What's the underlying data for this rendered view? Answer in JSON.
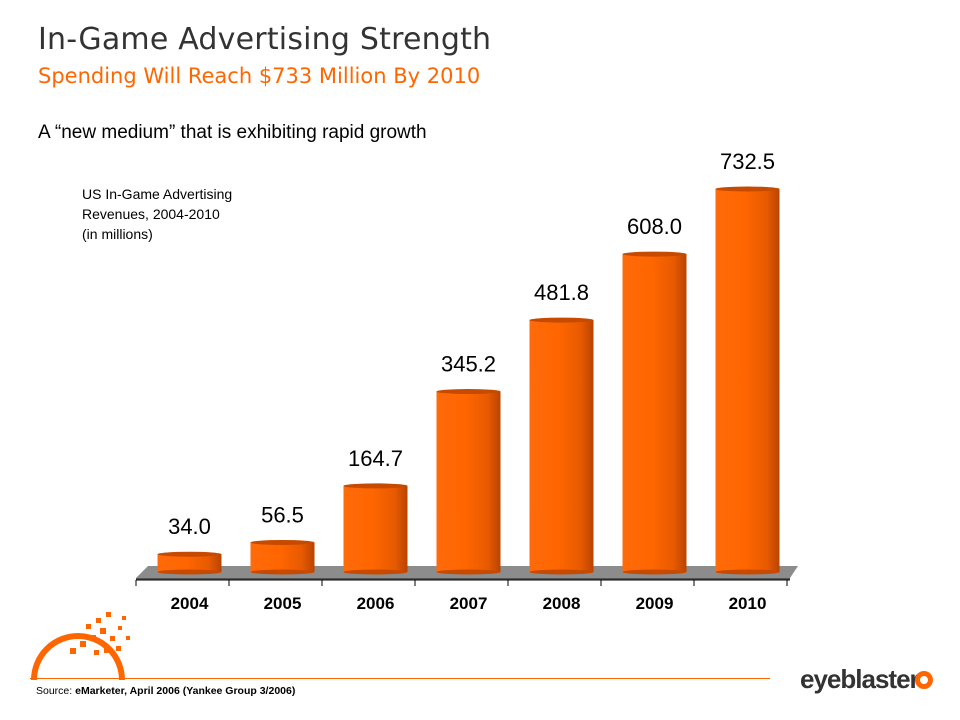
{
  "slide": {
    "title": "In-Game Advertising Strength",
    "subtitle": "Spending Will Reach $733 Million By 2010",
    "tagline": "A “new medium” that is exhibiting rapid growth",
    "source_prefix": "Source: ",
    "source_text": "eMarketer, April 2006 (Yankee Group 3/2006)",
    "logo_text": "eyeblaster",
    "colors": {
      "accent": "#ff6600",
      "bar": "#ff6600",
      "bar_dark": "#c64a00",
      "text": "#333333"
    }
  },
  "chart_data": {
    "type": "bar",
    "title_lines": [
      "US In-Game Advertising",
      "Revenues, 2004-2010",
      "(in millions)"
    ],
    "categories": [
      "2004",
      "2005",
      "2006",
      "2007",
      "2008",
      "2009",
      "2010"
    ],
    "values": [
      34.0,
      56.5,
      164.7,
      345.2,
      481.8,
      608.0,
      732.5
    ],
    "value_labels": [
      "34.0",
      "56.5",
      "164.7",
      "345.2",
      "481.8",
      "608.0",
      "732.5"
    ],
    "xlabel": "",
    "ylabel": "",
    "ylim": [
      0,
      732.5
    ],
    "grid": false,
    "legend": "none",
    "style": "3d-cylinder-bars"
  }
}
